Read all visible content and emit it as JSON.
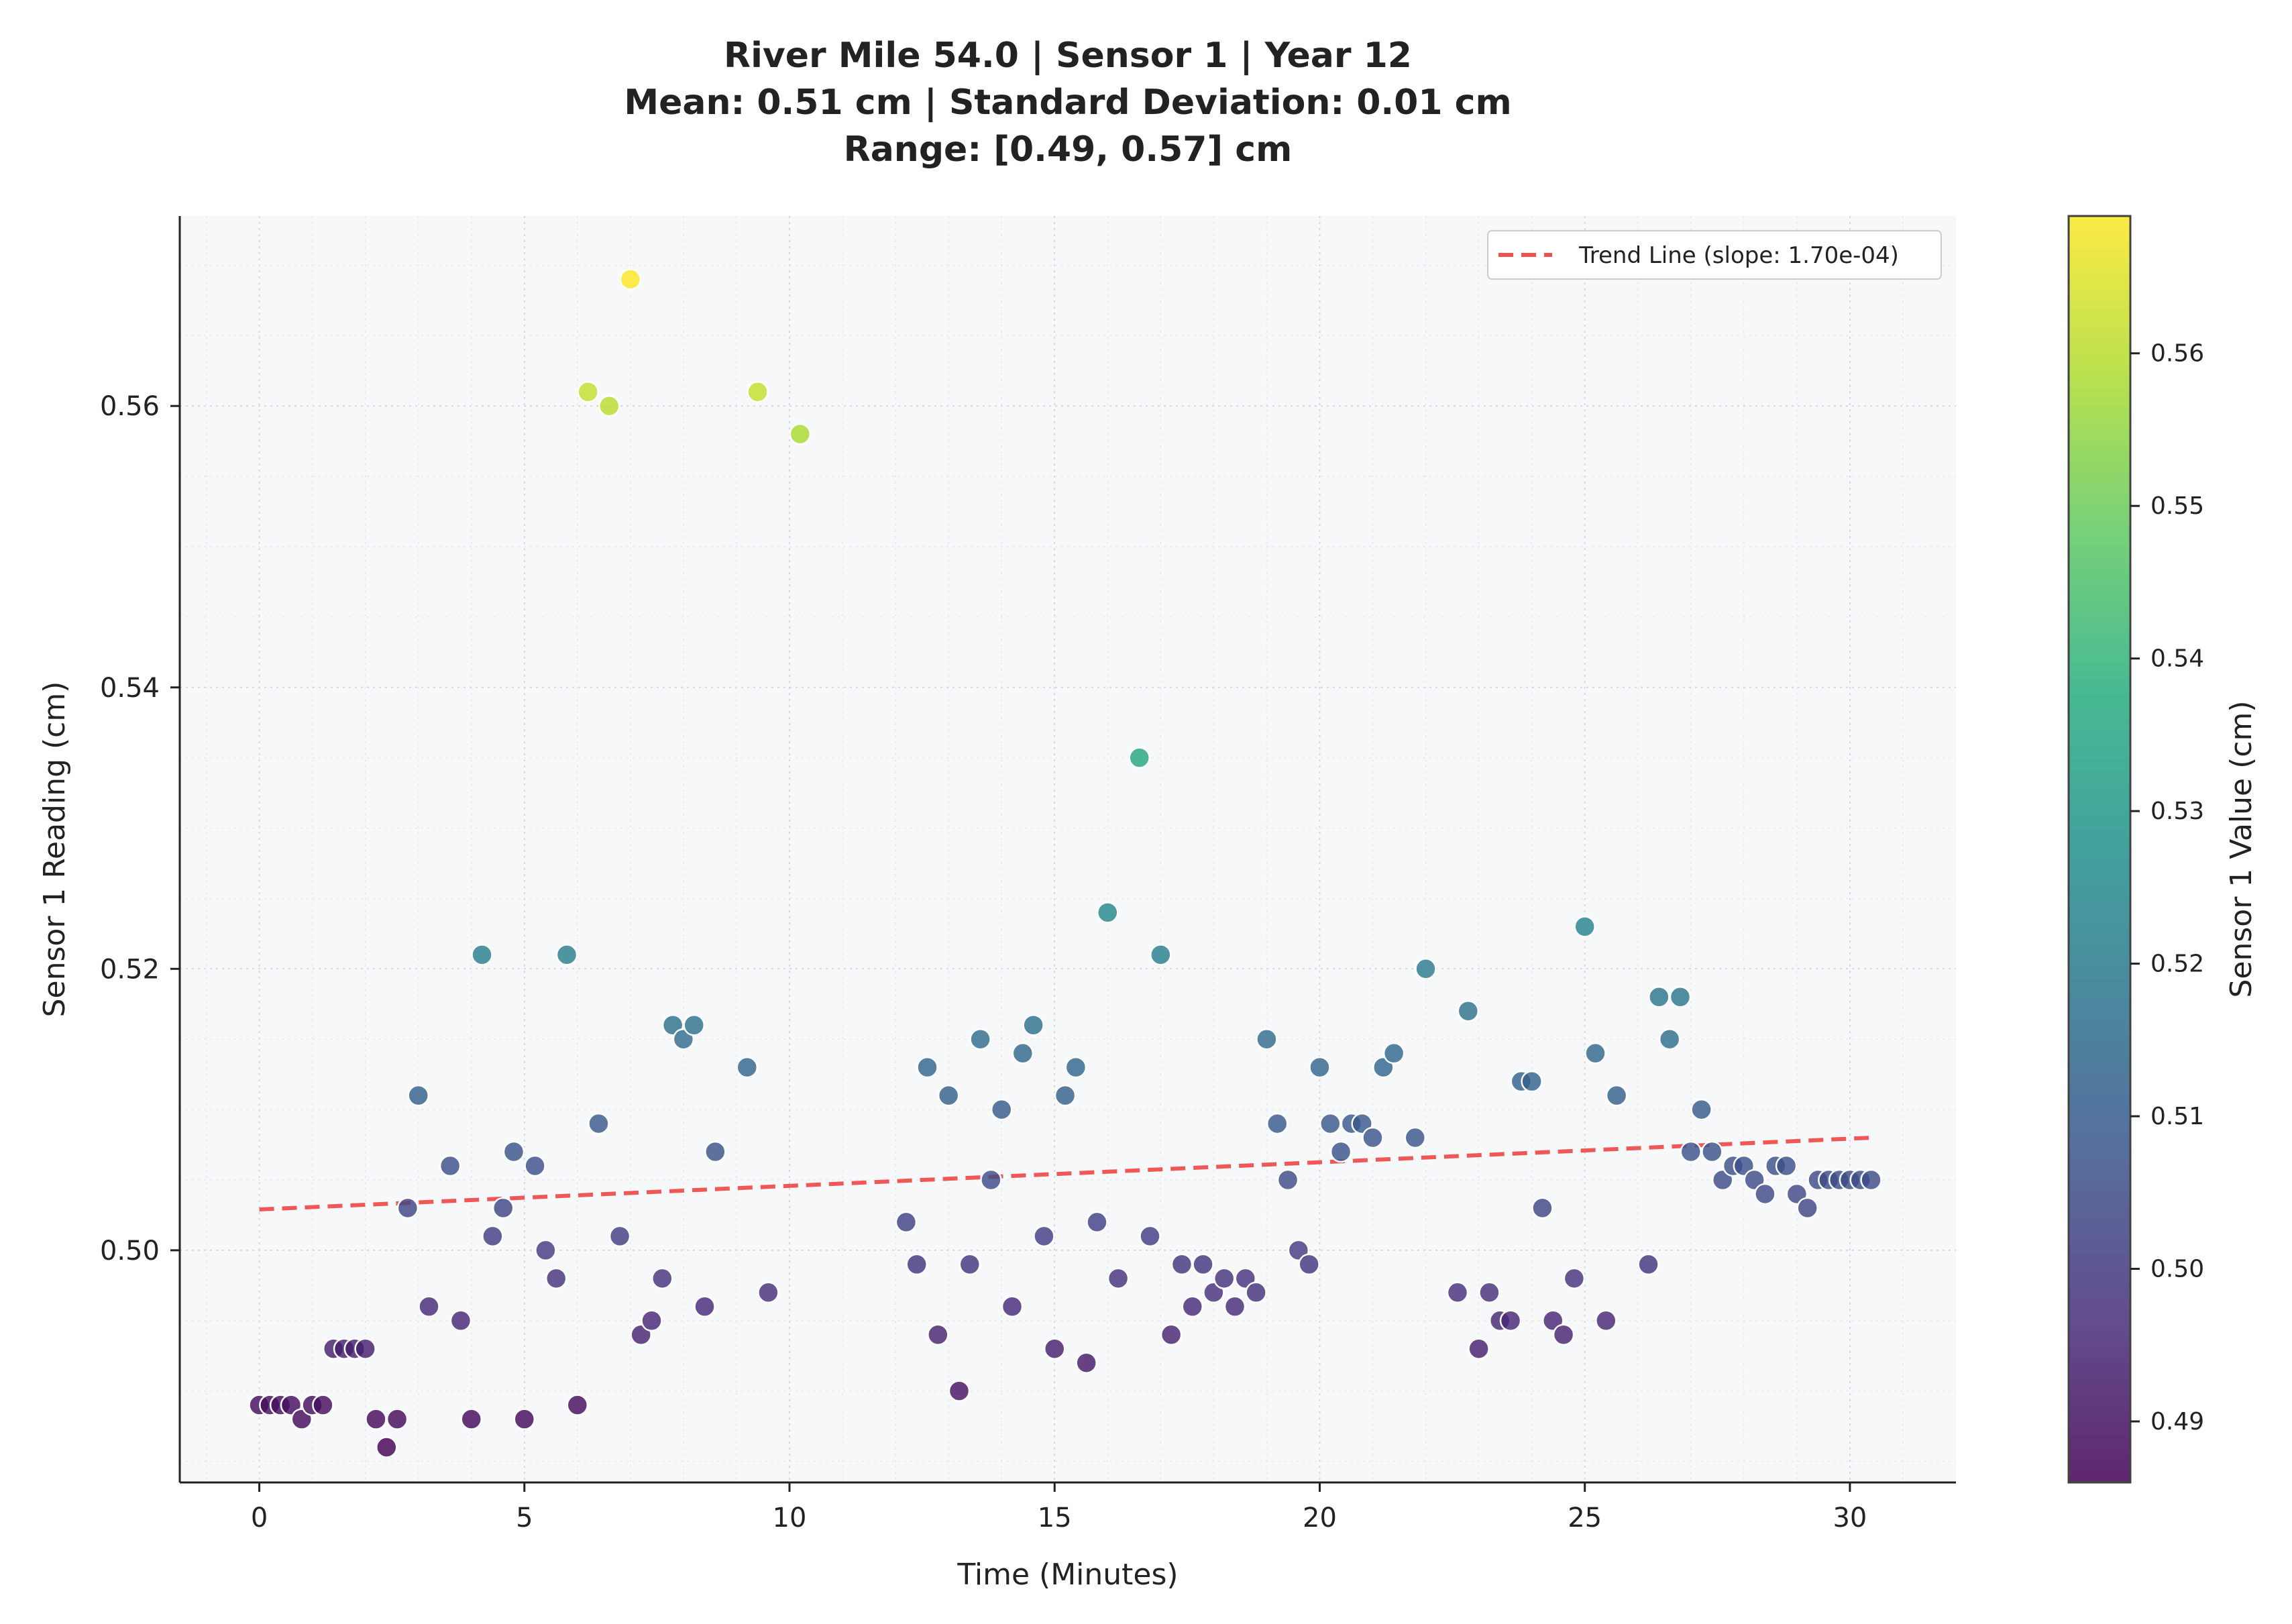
{
  "chart_data": {
    "type": "scatter",
    "title_lines": [
      "River Mile 54.0 | Sensor 1 | Year 12",
      "Mean: 0.51 cm | Standard Deviation: 0.01 cm",
      "Range: [0.49, 0.57] cm"
    ],
    "xlabel": "Time (Minutes)",
    "ylabel": "Sensor 1 Reading (cm)",
    "xlim": [
      -1.5,
      32
    ],
    "ylim": [
      0.4835,
      0.5735
    ],
    "x_ticks": [
      0,
      5,
      10,
      15,
      20,
      25,
      30
    ],
    "x_tick_labels": [
      "0",
      "5",
      "10",
      "15",
      "20",
      "25",
      "30"
    ],
    "y_ticks": [
      0.5,
      0.52,
      0.54,
      0.56
    ],
    "y_tick_labels": [
      "0.50",
      "0.52",
      "0.54",
      "0.56"
    ],
    "grid": true,
    "colormap": "viridis",
    "colorbar": {
      "label": "Sensor 1 Value (cm)",
      "range": [
        0.486,
        0.569
      ],
      "ticks": [
        0.49,
        0.5,
        0.51,
        0.52,
        0.53,
        0.54,
        0.55,
        0.56
      ],
      "tick_labels": [
        "0.49",
        "0.50",
        "0.51",
        "0.52",
        "0.53",
        "0.54",
        "0.55",
        "0.56"
      ]
    },
    "trend_line": {
      "label": "Trend Line (slope: 1.70e-04)",
      "slope": 0.00017,
      "x_start": 0,
      "x_end": 30.4,
      "y_start": 0.5029,
      "y_end": 0.508,
      "color": "#f05050",
      "style": "dashed"
    },
    "legend_position": "top-right",
    "points": [
      [
        0.0,
        0.489
      ],
      [
        0.2,
        0.489
      ],
      [
        0.4,
        0.489
      ],
      [
        0.6,
        0.489
      ],
      [
        0.8,
        0.488
      ],
      [
        1.0,
        0.489
      ],
      [
        1.2,
        0.489
      ],
      [
        1.4,
        0.493
      ],
      [
        1.6,
        0.493
      ],
      [
        1.8,
        0.493
      ],
      [
        2.0,
        0.493
      ],
      [
        2.2,
        0.488
      ],
      [
        2.4,
        0.486
      ],
      [
        2.6,
        0.488
      ],
      [
        2.8,
        0.503
      ],
      [
        3.0,
        0.511
      ],
      [
        3.2,
        0.496
      ],
      [
        3.6,
        0.506
      ],
      [
        3.8,
        0.495
      ],
      [
        4.0,
        0.488
      ],
      [
        4.2,
        0.521
      ],
      [
        4.4,
        0.501
      ],
      [
        4.6,
        0.503
      ],
      [
        4.8,
        0.507
      ],
      [
        5.0,
        0.488
      ],
      [
        5.2,
        0.506
      ],
      [
        5.4,
        0.5
      ],
      [
        5.6,
        0.498
      ],
      [
        5.8,
        0.521
      ],
      [
        6.0,
        0.489
      ],
      [
        6.2,
        0.561
      ],
      [
        6.4,
        0.509
      ],
      [
        6.6,
        0.56
      ],
      [
        6.8,
        0.501
      ],
      [
        7.0,
        0.569
      ],
      [
        7.2,
        0.494
      ],
      [
        7.4,
        0.495
      ],
      [
        7.6,
        0.498
      ],
      [
        7.8,
        0.516
      ],
      [
        8.0,
        0.515
      ],
      [
        8.2,
        0.516
      ],
      [
        8.4,
        0.496
      ],
      [
        8.6,
        0.507
      ],
      [
        9.2,
        0.513
      ],
      [
        9.4,
        0.561
      ],
      [
        9.6,
        0.497
      ],
      [
        10.2,
        0.558
      ],
      [
        12.2,
        0.502
      ],
      [
        12.4,
        0.499
      ],
      [
        12.6,
        0.513
      ],
      [
        12.8,
        0.494
      ],
      [
        13.0,
        0.511
      ],
      [
        13.2,
        0.49
      ],
      [
        13.4,
        0.499
      ],
      [
        13.6,
        0.515
      ],
      [
        13.8,
        0.505
      ],
      [
        14.0,
        0.51
      ],
      [
        14.2,
        0.496
      ],
      [
        14.4,
        0.514
      ],
      [
        14.6,
        0.516
      ],
      [
        14.8,
        0.501
      ],
      [
        15.0,
        0.493
      ],
      [
        15.2,
        0.511
      ],
      [
        15.4,
        0.513
      ],
      [
        15.6,
        0.492
      ],
      [
        15.8,
        0.502
      ],
      [
        16.0,
        0.524
      ],
      [
        16.2,
        0.498
      ],
      [
        16.6,
        0.535
      ],
      [
        16.8,
        0.501
      ],
      [
        17.0,
        0.521
      ],
      [
        17.2,
        0.494
      ],
      [
        17.4,
        0.499
      ],
      [
        17.6,
        0.496
      ],
      [
        17.8,
        0.499
      ],
      [
        18.0,
        0.497
      ],
      [
        18.2,
        0.498
      ],
      [
        18.4,
        0.496
      ],
      [
        18.6,
        0.498
      ],
      [
        18.8,
        0.497
      ],
      [
        19.0,
        0.515
      ],
      [
        19.2,
        0.509
      ],
      [
        19.4,
        0.505
      ],
      [
        19.6,
        0.5
      ],
      [
        19.8,
        0.499
      ],
      [
        20.0,
        0.513
      ],
      [
        20.2,
        0.509
      ],
      [
        20.4,
        0.507
      ],
      [
        20.6,
        0.509
      ],
      [
        20.8,
        0.509
      ],
      [
        21.0,
        0.508
      ],
      [
        21.2,
        0.513
      ],
      [
        21.4,
        0.514
      ],
      [
        21.8,
        0.508
      ],
      [
        22.0,
        0.52
      ],
      [
        22.6,
        0.497
      ],
      [
        22.8,
        0.517
      ],
      [
        23.0,
        0.493
      ],
      [
        23.2,
        0.497
      ],
      [
        23.4,
        0.495
      ],
      [
        23.6,
        0.495
      ],
      [
        23.8,
        0.512
      ],
      [
        24.0,
        0.512
      ],
      [
        24.2,
        0.503
      ],
      [
        24.4,
        0.495
      ],
      [
        24.6,
        0.494
      ],
      [
        24.8,
        0.498
      ],
      [
        25.0,
        0.523
      ],
      [
        25.2,
        0.514
      ],
      [
        25.4,
        0.495
      ],
      [
        25.6,
        0.511
      ],
      [
        26.2,
        0.499
      ],
      [
        26.4,
        0.518
      ],
      [
        26.6,
        0.515
      ],
      [
        26.8,
        0.518
      ],
      [
        27.0,
        0.507
      ],
      [
        27.2,
        0.51
      ],
      [
        27.4,
        0.507
      ],
      [
        27.6,
        0.505
      ],
      [
        27.8,
        0.506
      ],
      [
        28.0,
        0.506
      ],
      [
        28.2,
        0.505
      ],
      [
        28.4,
        0.504
      ],
      [
        28.6,
        0.506
      ],
      [
        28.8,
        0.506
      ],
      [
        29.0,
        0.504
      ],
      [
        29.2,
        0.503
      ],
      [
        29.4,
        0.505
      ],
      [
        29.6,
        0.505
      ],
      [
        29.8,
        0.505
      ],
      [
        30.0,
        0.505
      ],
      [
        30.2,
        0.505
      ],
      [
        30.4,
        0.505
      ]
    ]
  }
}
